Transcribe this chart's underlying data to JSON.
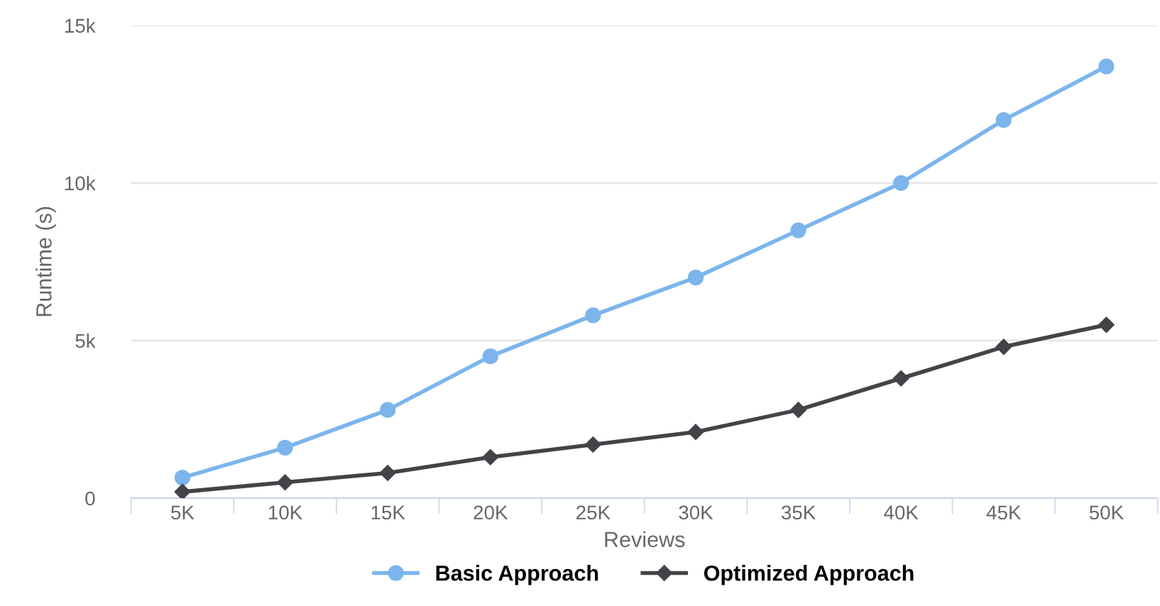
{
  "chart_data": {
    "type": "line",
    "xlabel": "Reviews",
    "ylabel": "Runtime (s)",
    "categories": [
      "5K",
      "10K",
      "15K",
      "20K",
      "25K",
      "30K",
      "35K",
      "40K",
      "45K",
      "50K"
    ],
    "series": [
      {
        "name": "Basic Approach",
        "color": "#7cb5ec",
        "marker": "circle",
        "values": [
          650,
          1600,
          2800,
          4500,
          5800,
          7000,
          8500,
          10000,
          12000,
          13700
        ]
      },
      {
        "name": "Optimized Approach",
        "color": "#434348",
        "marker": "diamond",
        "values": [
          200,
          500,
          800,
          1300,
          1700,
          2100,
          2800,
          3800,
          4800,
          5500
        ]
      }
    ],
    "ylim": [
      0,
      15000
    ],
    "yticks": [
      0,
      {
        "value": 5000,
        "label": "5k"
      },
      {
        "value": 10000,
        "label": "10k"
      },
      {
        "value": 15000,
        "label": "15k"
      }
    ],
    "grid": "y",
    "legend": "bottom"
  }
}
